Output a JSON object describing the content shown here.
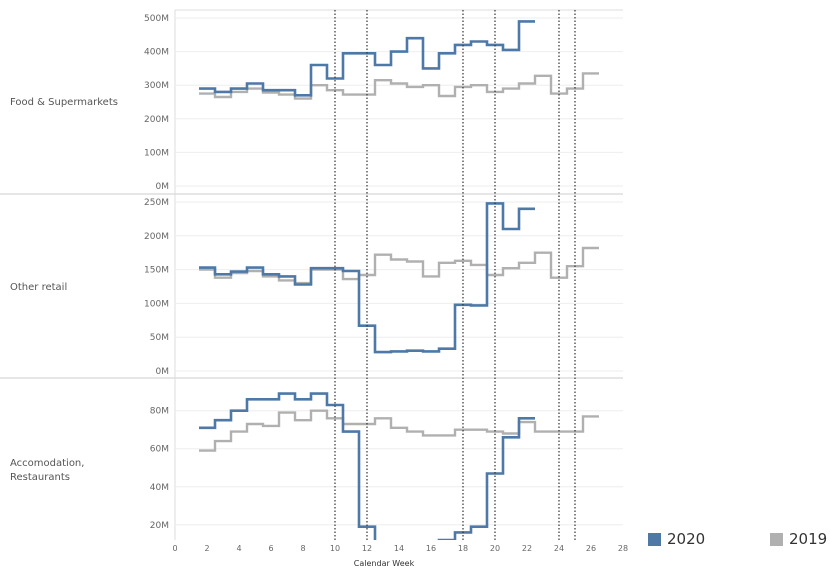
{
  "chart_data": {
    "type": "line",
    "step": true,
    "xlabel": "Calendar Week",
    "x_ticks": [
      0,
      2,
      4,
      6,
      8,
      10,
      12,
      14,
      16,
      18,
      20,
      22,
      24,
      26,
      28
    ],
    "xlim": [
      0,
      28
    ],
    "reference_lines_x": [
      10,
      12,
      18,
      20,
      24,
      25
    ],
    "legend": {
      "placement": "bottom-right",
      "entries": [
        {
          "name": "2020",
          "color": "#4e79a7"
        },
        {
          "name": "2019",
          "color": "#b0b0b0"
        }
      ]
    },
    "panels": [
      {
        "label": "Food & Supermarkets",
        "ylim": [
          0,
          500000000
        ],
        "y_ticks": [
          {
            "v": 0,
            "t": "0M"
          },
          {
            "v": 100000000,
            "t": "100M"
          },
          {
            "v": 200000000,
            "t": "200M"
          },
          {
            "v": 300000000,
            "t": "300M"
          },
          {
            "v": 400000000,
            "t": "400M"
          },
          {
            "v": 500000000,
            "t": "500M"
          }
        ],
        "series": [
          {
            "name": "2020",
            "color": "#4e79a7",
            "x": [
              2,
              3,
              4,
              5,
              6,
              7,
              8,
              9,
              10,
              11,
              12,
              13,
              14,
              15,
              16,
              17,
              18,
              19,
              20,
              21,
              22
            ],
            "values": [
              290000000,
              280000000,
              290000000,
              305000000,
              285000000,
              285000000,
              270000000,
              360000000,
              320000000,
              395000000,
              395000000,
              360000000,
              400000000,
              440000000,
              350000000,
              395000000,
              420000000,
              430000000,
              420000000,
              405000000,
              490000000
            ]
          },
          {
            "name": "2019",
            "color": "#b0b0b0",
            "x": [
              2,
              3,
              4,
              5,
              6,
              7,
              8,
              9,
              10,
              11,
              12,
              13,
              14,
              15,
              16,
              17,
              18,
              19,
              20,
              21,
              22,
              23,
              24,
              25,
              26
            ],
            "values": [
              275000000,
              265000000,
              280000000,
              290000000,
              278000000,
              272000000,
              260000000,
              300000000,
              285000000,
              272000000,
              272000000,
              315000000,
              305000000,
              295000000,
              300000000,
              268000000,
              295000000,
              300000000,
              280000000,
              290000000,
              305000000,
              328000000,
              275000000,
              290000000,
              335000000
            ]
          }
        ]
      },
      {
        "label": "Other retail",
        "ylim": [
          0,
          250000000
        ],
        "y_ticks": [
          {
            "v": 0,
            "t": "0M"
          },
          {
            "v": 50000000,
            "t": "50M"
          },
          {
            "v": 100000000,
            "t": "100M"
          },
          {
            "v": 150000000,
            "t": "150M"
          },
          {
            "v": 200000000,
            "t": "200M"
          },
          {
            "v": 250000000,
            "t": "250M"
          }
        ],
        "series": [
          {
            "name": "2020",
            "color": "#4e79a7",
            "x": [
              2,
              3,
              4,
              5,
              6,
              7,
              8,
              9,
              10,
              11,
              12,
              13,
              14,
              15,
              16,
              17,
              18,
              19,
              20,
              21,
              22
            ],
            "values": [
              153000000,
              143000000,
              147000000,
              153000000,
              143000000,
              140000000,
              128000000,
              152000000,
              152000000,
              148000000,
              67000000,
              28000000,
              29000000,
              30000000,
              29000000,
              33000000,
              98000000,
              97000000,
              248000000,
              210000000,
              240000000
            ]
          },
          {
            "name": "2019",
            "color": "#b0b0b0",
            "x": [
              2,
              3,
              4,
              5,
              6,
              7,
              8,
              9,
              10,
              11,
              12,
              13,
              14,
              15,
              16,
              17,
              18,
              19,
              20,
              21,
              22,
              23,
              24,
              25,
              26
            ],
            "values": [
              150000000,
              138000000,
              145000000,
              148000000,
              140000000,
              134000000,
              130000000,
              150000000,
              150000000,
              136000000,
              142000000,
              172000000,
              165000000,
              162000000,
              140000000,
              160000000,
              163000000,
              157000000,
              142000000,
              152000000,
              160000000,
              175000000,
              138000000,
              155000000,
              182000000
            ]
          }
        ]
      },
      {
        "label": "Accomodation, Restaurants",
        "ylim": [
          12000000,
          93000000
        ],
        "y_ticks": [
          {
            "v": 20000000,
            "t": "20M"
          },
          {
            "v": 40000000,
            "t": "40M"
          },
          {
            "v": 60000000,
            "t": "60M"
          },
          {
            "v": 80000000,
            "t": "80M"
          }
        ],
        "series": [
          {
            "name": "2020",
            "color": "#4e79a7",
            "x": [
              2,
              3,
              4,
              5,
              6,
              7,
              8,
              9,
              10,
              11,
              12,
              13,
              14,
              15,
              16,
              17,
              18,
              19,
              20,
              21,
              22
            ],
            "values": [
              71000000,
              75000000,
              80000000,
              86000000,
              86000000,
              89000000,
              86000000,
              89000000,
              83000000,
              69000000,
              19000000,
              9000000,
              9000000,
              9000000,
              9000000,
              12000000,
              16000000,
              19000000,
              47000000,
              66000000,
              76000000
            ]
          },
          {
            "name": "2019",
            "color": "#b0b0b0",
            "x": [
              2,
              3,
              4,
              5,
              6,
              7,
              8,
              9,
              10,
              11,
              12,
              13,
              14,
              15,
              16,
              17,
              18,
              19,
              20,
              21,
              22,
              23,
              24,
              25,
              26
            ],
            "values": [
              59000000,
              64000000,
              69000000,
              73000000,
              72000000,
              79000000,
              75000000,
              80000000,
              76000000,
              73000000,
              73000000,
              76000000,
              71000000,
              69000000,
              67000000,
              67000000,
              70000000,
              70000000,
              69000000,
              68000000,
              74000000,
              69000000,
              69000000,
              69000000,
              77000000
            ]
          }
        ]
      }
    ]
  }
}
